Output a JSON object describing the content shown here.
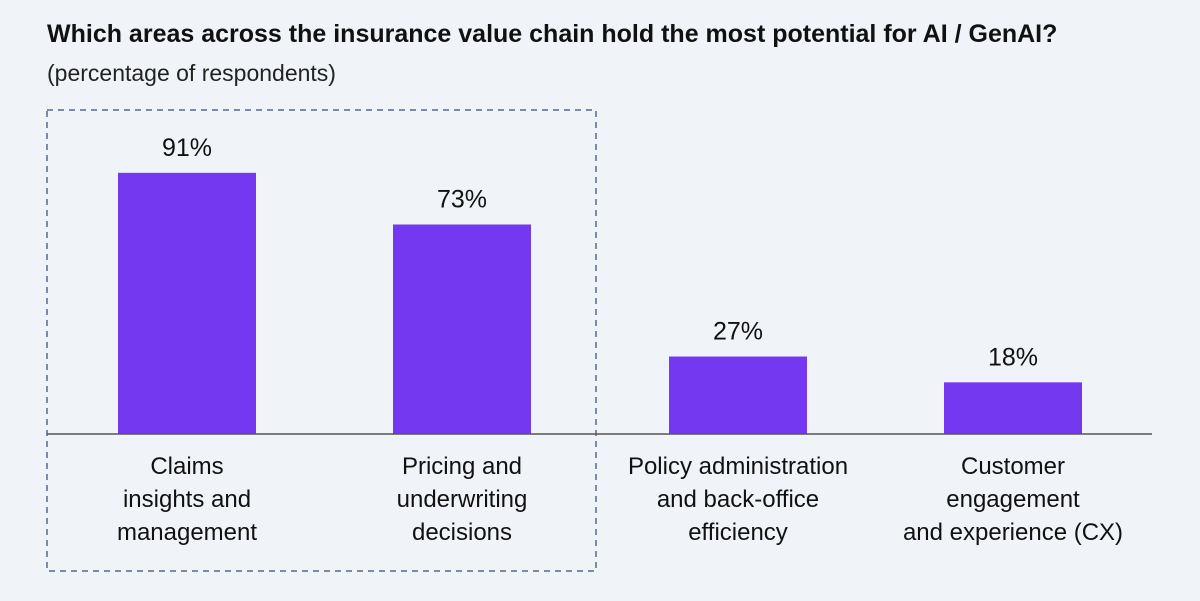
{
  "header": {
    "title": "Which areas across the insurance value chain hold the most potential for AI / GenAI?",
    "subtitle": "(percentage of respondents)"
  },
  "colors": {
    "bar": "#7438f0",
    "background": "#f0f4f8",
    "highlight_box": "#7a8ca6",
    "baseline": "#555555"
  },
  "chart_data": {
    "type": "bar",
    "title": "Which areas across the insurance value chain hold the most potential for AI / GenAI?",
    "subtitle": "(percentage of respondents)",
    "categories": [
      "Claims insights and management",
      "Pricing and underwriting decisions",
      "Policy administration and back-office efficiency",
      "Customer engagement and experience (CX)"
    ],
    "category_lines": [
      [
        "Claims",
        "insights and",
        "management"
      ],
      [
        "Pricing and",
        "underwriting",
        "decisions"
      ],
      [
        "Policy administration",
        "and back-office",
        "efficiency"
      ],
      [
        "Customer",
        "engagement",
        "and experience (CX)"
      ]
    ],
    "values": [
      91,
      73,
      27,
      18
    ],
    "data_labels": [
      "91%",
      "73%",
      "27%",
      "18%"
    ],
    "unit": "%",
    "ylim": [
      0,
      100
    ],
    "grid": false,
    "legend": "none",
    "highlighted_categories": [
      0,
      1
    ]
  }
}
